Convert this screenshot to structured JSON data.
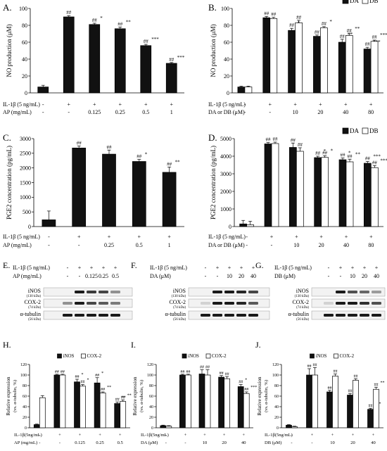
{
  "colors": {
    "black_bar": "#111111",
    "white_bar": "#ffffff",
    "axis": "#000000",
    "band_bg": "#f2f2f2",
    "band": "#1a1a1a"
  },
  "chart_data": [
    {
      "panel": "A.",
      "type": "bar",
      "ylabel": "NO production (μM)",
      "ylim": [
        0,
        100
      ],
      "yticks": [
        0,
        20,
        40,
        60,
        80,
        100
      ],
      "categories": [
        "1",
        "2",
        "3",
        "4",
        "5",
        "6"
      ],
      "series": [
        {
          "values": [
            7,
            90,
            81,
            76,
            56,
            35
          ],
          "errors": [
            2,
            1.5,
            1.5,
            2,
            1.5,
            1
          ],
          "fill": "#111111",
          "labels": [
            "",
            "##",
            "##,*",
            "##,**",
            "##,***",
            "##,***"
          ]
        }
      ],
      "rows": [
        {
          "label": "IL-1β (5 ng/mL)",
          "values": [
            "-",
            "+",
            "+",
            "+",
            "+",
            "+"
          ]
        },
        {
          "label": "AP (mg/mL)",
          "values": [
            "-",
            "-",
            "0.125",
            "0.25",
            "0.5",
            "1"
          ]
        }
      ]
    },
    {
      "panel": "B.",
      "type": "bar",
      "ylabel": "NO production (μM)",
      "ylim": [
        0,
        100
      ],
      "yticks": [
        0,
        20,
        40,
        60,
        80,
        100
      ],
      "legend": [
        "DA",
        "DB"
      ],
      "legend_position": "top-right",
      "categories": [
        "1",
        "2",
        "3",
        "4",
        "5",
        "6"
      ],
      "series": [
        {
          "name": "DA",
          "values": [
            7,
            89,
            74,
            67,
            60,
            52
          ],
          "errors": [
            1,
            1.5,
            2.5,
            1.5,
            3.5,
            2
          ],
          "fill": "#111111",
          "labels": [
            "",
            "##",
            "##,*",
            "##,**",
            "##,**",
            "##,***"
          ]
        },
        {
          "name": "DB",
          "values": [
            7,
            88,
            83,
            77,
            68,
            61
          ],
          "errors": [
            1,
            1.5,
            3,
            1.5,
            2,
            1.5
          ],
          "fill": "#ffffff",
          "labels": [
            "",
            "##",
            "##",
            "##,*",
            "##,**",
            "##,***"
          ]
        }
      ],
      "rows": [
        {
          "label": "IL-1β (5 ng/mL)",
          "values": [
            "-",
            "+",
            "+",
            "+",
            "+",
            "+"
          ]
        },
        {
          "label": "DA or DB (μM)",
          "values": [
            "-",
            "-",
            "10",
            "20",
            "40",
            "80"
          ]
        }
      ]
    },
    {
      "panel": "C.",
      "type": "bar",
      "ylabel": "PGE2 concentration (pg/mL)",
      "ylim": [
        0,
        3000
      ],
      "yticks": [
        0,
        500,
        1000,
        1500,
        2000,
        2500,
        3000
      ],
      "categories": [
        "1",
        "2",
        "3",
        "4",
        "5"
      ],
      "series": [
        {
          "values": [
            230,
            2680,
            2470,
            2220,
            1850
          ],
          "errors": [
            300,
            70,
            140,
            70,
            180
          ],
          "fill": "#111111",
          "labels": [
            "",
            "##",
            "##",
            "##,*",
            "##,**"
          ]
        }
      ],
      "rows": [
        {
          "label": "IL-1β (5 ng/mL)",
          "values": [
            "-",
            "+",
            "+",
            "+",
            "+"
          ]
        },
        {
          "label": "AP (mg/mL)",
          "values": [
            "-",
            "-",
            "0.25",
            "0.5",
            "1"
          ]
        }
      ]
    },
    {
      "panel": "D.",
      "type": "bar",
      "ylabel": "PGE2 concentration (pg/mL)",
      "ylim": [
        0,
        5000
      ],
      "yticks": [
        0,
        1000,
        2000,
        3000,
        4000,
        5000
      ],
      "legend": [
        "DA",
        "DB"
      ],
      "legend_position": "top-right",
      "categories": [
        "1",
        "2",
        "3",
        "4",
        "5",
        "6"
      ],
      "series": [
        {
          "name": "DA",
          "values": [
            150,
            4700,
            4500,
            3920,
            3800,
            3600
          ],
          "errors": [
            200,
            80,
            250,
            80,
            100,
            100
          ],
          "fill": "#111111",
          "labels": [
            "",
            "##",
            "##",
            "##,*",
            "##,*",
            "##,***"
          ]
        },
        {
          "name": "DB",
          "values": [
            100,
            4720,
            4280,
            3930,
            3680,
            3350
          ],
          "errors": [
            200,
            80,
            200,
            100,
            150,
            120
          ],
          "fill": "#ffffff",
          "labels": [
            "",
            "##",
            "##",
            "##,*",
            "##,**",
            "##,***"
          ]
        }
      ],
      "rows": [
        {
          "label": "IL-1β (5 ng/mL)",
          "values": [
            "-",
            "+",
            "+",
            "+",
            "+",
            "+"
          ]
        },
        {
          "label": "DA or DB (μM)",
          "values": [
            "-",
            "-",
            "10",
            "20",
            "40",
            "80"
          ]
        }
      ]
    },
    {
      "panel": "H.",
      "type": "bar",
      "ylabel": "Relative expression (vs. α-tubulin, %)",
      "ylim": [
        0,
        120
      ],
      "yticks": [
        0,
        20,
        40,
        60,
        80,
        100,
        120
      ],
      "legend": [
        "iNOS",
        "COX-2"
      ],
      "legend_position": "top",
      "categories": [
        "1",
        "2",
        "3",
        "4",
        "5"
      ],
      "series": [
        {
          "name": "iNOS",
          "values": [
            6,
            100,
            87,
            85,
            46
          ],
          "errors": [
            1,
            1.5,
            5,
            10,
            3
          ],
          "fill": "#111111",
          "labels": [
            "",
            "##",
            "##,*",
            "##,*",
            "##,**"
          ]
        },
        {
          "name": "COX-2",
          "values": [
            57,
            100,
            79,
            66,
            50
          ],
          "errors": [
            4,
            1.5,
            3,
            2,
            3
          ],
          "fill": "#ffffff",
          "labels": [
            "",
            "##",
            "##,*",
            "##,**",
            "##,**"
          ]
        }
      ],
      "rows": [
        {
          "label": "IL-1β(5ng/mL)",
          "values": [
            "-",
            "+",
            "+",
            "+",
            "+"
          ]
        },
        {
          "label": "AP (mg/mL)",
          "values": [
            "-",
            "-",
            "0.125",
            "0.25",
            "0.5"
          ]
        }
      ]
    },
    {
      "panel": "I.",
      "type": "bar",
      "ylabel": "Relative expression (vs. α-tubulin, %)",
      "ylim": [
        0,
        120
      ],
      "yticks": [
        0,
        20,
        40,
        60,
        80,
        100,
        120
      ],
      "legend": [
        "iNOS",
        "COX-2"
      ],
      "legend_position": "top",
      "categories": [
        "1",
        "2",
        "3",
        "4",
        "5"
      ],
      "series": [
        {
          "name": "iNOS",
          "values": [
            4,
            100,
            102,
            96,
            78
          ],
          "errors": [
            1,
            1.5,
            8,
            3,
            4
          ],
          "fill": "#111111",
          "labels": [
            "",
            "##",
            "##",
            "##",
            "##,*"
          ]
        },
        {
          "name": "COX-2",
          "values": [
            3,
            100,
            100,
            93,
            65
          ],
          "errors": [
            1,
            1.5,
            10,
            4,
            3
          ],
          "fill": "#ffffff",
          "labels": [
            "",
            "##",
            "##",
            "##",
            "##,***"
          ]
        }
      ],
      "rows": [
        {
          "label": "IL-1β(5ng/mL)",
          "values": [
            "-",
            "+",
            "+",
            "+",
            "+"
          ]
        },
        {
          "label": "DA (μM)",
          "values": [
            "-",
            "-",
            "10",
            "20",
            "40"
          ]
        }
      ]
    },
    {
      "panel": "J.",
      "type": "bar",
      "ylabel": "Relative expression (vs. α-tubulin, %)",
      "ylim": [
        0,
        120
      ],
      "yticks": [
        0,
        20,
        40,
        60,
        80,
        100,
        120
      ],
      "legend": [
        "iNOS",
        "COX-2"
      ],
      "legend_position": "top",
      "categories": [
        "1",
        "2",
        "3",
        "4",
        "5"
      ],
      "series": [
        {
          "name": "iNOS",
          "values": [
            5,
            100,
            68,
            62,
            35
          ],
          "errors": [
            1,
            12,
            3,
            3,
            2
          ],
          "fill": "#111111",
          "labels": [
            "",
            "##",
            "##,**",
            "##,**",
            "##,***"
          ]
        },
        {
          "name": "COX-2",
          "values": [
            2,
            100,
            98,
            90,
            73
          ],
          "errors": [
            1,
            14,
            4,
            3,
            4
          ],
          "fill": "#ffffff",
          "labels": [
            "",
            "##",
            "##",
            "##",
            "##,**"
          ]
        }
      ],
      "rows": [
        {
          "label": "IL-1β(5ng/mL)",
          "values": [
            "-",
            "+",
            "+",
            "+",
            "+"
          ]
        },
        {
          "label": "DB (μM)",
          "values": [
            "-",
            "-",
            "10",
            "20",
            "40"
          ]
        }
      ]
    }
  ],
  "blots": [
    {
      "panel": "E.",
      "header_rows": [
        {
          "label": "IL-1β (5 ng/mL)",
          "values": [
            "-",
            "+",
            "+",
            "+",
            "+"
          ]
        },
        {
          "label": "AP (mg/mL)",
          "values": [
            "-",
            "-",
            "0.125",
            "0.25",
            "0.5"
          ]
        }
      ],
      "bands": [
        {
          "name": "iNOS",
          "size": "(130 kDa)",
          "intensity": [
            0,
            1,
            0.85,
            0.8,
            0.45
          ]
        },
        {
          "name": "COX-2",
          "size": "(74 kDa)",
          "intensity": [
            0.45,
            1,
            0.8,
            0.7,
            0.55
          ]
        },
        {
          "name": "α-tubulin",
          "size": "(56 kDa)",
          "intensity": [
            1,
            1,
            1,
            1,
            1
          ]
        }
      ]
    },
    {
      "panel": "F.",
      "header_rows": [
        {
          "label": "IL-1β (5 ng/mL)",
          "values": [
            "-",
            "+",
            "+",
            "+",
            "+"
          ]
        },
        {
          "label": "DA (μM)",
          "values": [
            "-",
            "-",
            "10",
            "20",
            "40"
          ]
        }
      ],
      "bands": [
        {
          "name": "iNOS",
          "size": "(130 kDa)",
          "intensity": [
            0,
            1,
            1,
            0.95,
            0.8
          ]
        },
        {
          "name": "COX-2",
          "size": "(74 kDa)",
          "intensity": [
            0.05,
            1,
            1,
            0.95,
            0.7
          ]
        },
        {
          "name": "α-tubulin",
          "size": "(56 kDa)",
          "intensity": [
            1,
            1,
            1,
            1,
            1
          ]
        }
      ]
    },
    {
      "panel": "G.",
      "header_rows": [
        {
          "label": "IL-1β (5 ng/mL)",
          "values": [
            "-",
            "+",
            "+",
            "+",
            "+"
          ]
        },
        {
          "label": "DB (μM)",
          "values": [
            "-",
            "-",
            "10",
            "20",
            "40"
          ]
        }
      ],
      "bands": [
        {
          "name": "iNOS",
          "size": "(130 kDa)",
          "intensity": [
            0,
            1,
            0.75,
            0.65,
            0.4
          ]
        },
        {
          "name": "COX-2",
          "size": "(74 kDa)",
          "intensity": [
            0.05,
            1,
            1,
            0.9,
            0.75
          ]
        },
        {
          "name": "α-tubulin",
          "size": "(56 kDa)",
          "intensity": [
            1,
            1,
            1,
            1,
            1
          ]
        }
      ]
    }
  ]
}
